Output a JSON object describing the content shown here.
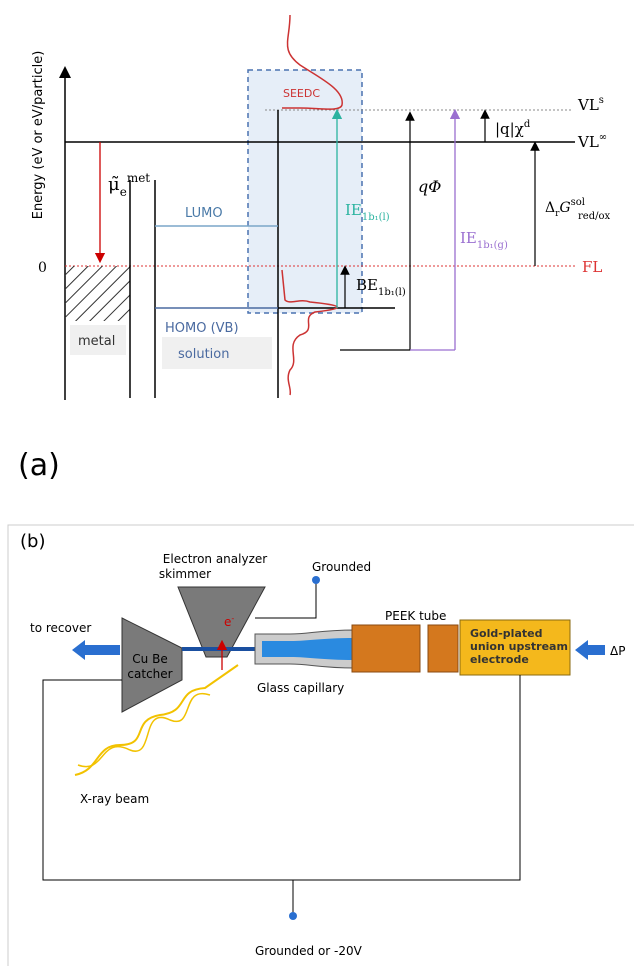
{
  "panel_a": {
    "label": "(a)",
    "y_axis_label": "Energy (eV or eV/particle)",
    "zero": "0",
    "vl_s": {
      "base": "VL",
      "sup": "s"
    },
    "vl_inf": {
      "base": "VL",
      "sup": "∞"
    },
    "fl": "FL",
    "seedc": "SEEDC",
    "lumo": "LUMO",
    "homo": "HOMO (VB)",
    "metal": "metal",
    "solution": "solution",
    "mu": {
      "base": "μ̃",
      "sub": "e",
      "sup": "met"
    },
    "ie_l": {
      "base": "IE",
      "sub": "1b₁(l)"
    },
    "q_phi": "qΦ",
    "chi": {
      "base": "|q|χ",
      "sup": "d"
    },
    "delta_g": {
      "base": "Δ",
      "sub1": "r",
      "mid": "G",
      "sup": "sol",
      "sub2": "red/ox"
    },
    "ie_g": {
      "base": "IE",
      "sub": "1b₁(g)"
    },
    "be_l": {
      "base": "BE",
      "sub": "1b₁(l)"
    }
  },
  "panel_b": {
    "label": "(b)",
    "analyzer": [
      "Electron analyzer",
      "skimmer"
    ],
    "grounded": "Grounded",
    "peek": "PEEK tube",
    "recover": "to recover",
    "catcher": [
      "Cu Be",
      "catcher"
    ],
    "electron": {
      "base": "e",
      "sup": "-"
    },
    "gold": [
      "Gold-plated",
      "union upstream",
      "electrode"
    ],
    "delta_p": "ΔP",
    "capillary": "Glass capillary",
    "xray": "X-ray beam",
    "ground_bottom": "Grounded or -20V"
  }
}
